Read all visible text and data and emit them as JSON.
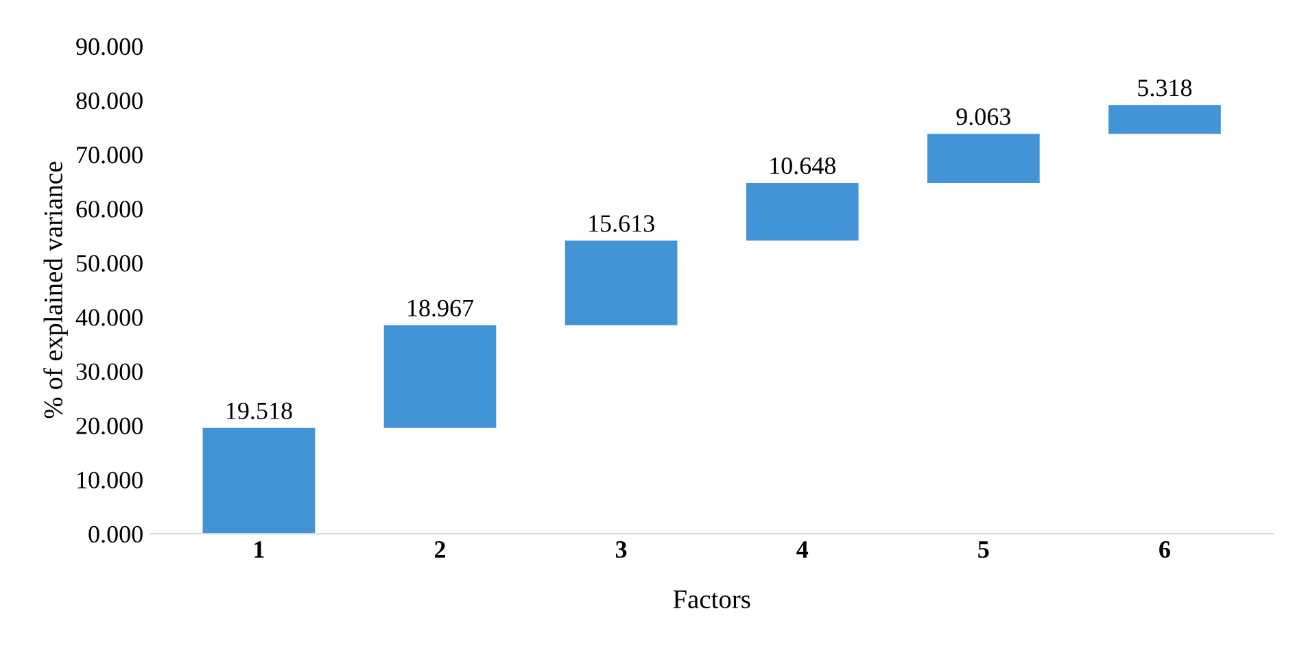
{
  "chart_data": {
    "type": "bar",
    "xlabel": "Factors",
    "ylabel": "% of explained variance",
    "categories": [
      "1",
      "2",
      "3",
      "4",
      "5",
      "6"
    ],
    "values": [
      19.518,
      18.967,
      15.613,
      10.648,
      9.063,
      5.318
    ],
    "base": [
      0,
      19.518,
      38.485,
      54.098,
      64.746,
      73.809
    ],
    "color": "#4394d6",
    "ylim": [
      0,
      90
    ],
    "yticks": [
      {
        "value": 0,
        "label": "0.000"
      },
      {
        "value": 10,
        "label": "10.000"
      },
      {
        "value": 20,
        "label": "20.000"
      },
      {
        "value": 30,
        "label": "30.000"
      },
      {
        "value": 40,
        "label": "40.000"
      },
      {
        "value": 50,
        "label": "50.000"
      },
      {
        "value": 60,
        "label": "60.000"
      },
      {
        "value": 70,
        "label": "70.000"
      },
      {
        "value": 80,
        "label": "80.000"
      },
      {
        "value": 90,
        "label": "90.000"
      }
    ],
    "data_labels": true,
    "grid": false
  }
}
